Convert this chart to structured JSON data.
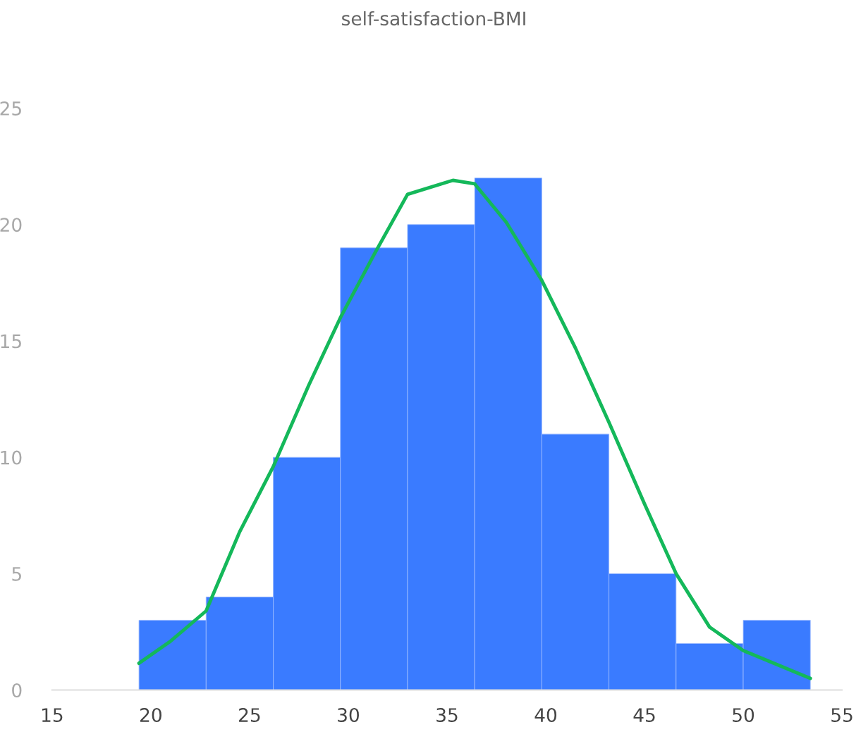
{
  "chart_data": {
    "type": "histogram",
    "title": "self-satisfaction-BMI",
    "bins": [
      19.4,
      22.8,
      26.2,
      29.6,
      33.0,
      36.4,
      39.8,
      43.2,
      46.6,
      50.0,
      53.4
    ],
    "values": [
      3,
      4,
      10,
      19,
      20,
      22,
      11,
      5,
      2,
      3
    ],
    "color": "#3a7bff",
    "series": [
      {
        "type": "line",
        "color": "#14b85a",
        "x": [
          19.4,
          21,
          22.8,
          24.5,
          26.2,
          28,
          29.6,
          31.3,
          33.0,
          35.3,
          36.4,
          38,
          39.8,
          41.5,
          43.2,
          45,
          46.6,
          48.3,
          50.0,
          53.4
        ],
        "values": [
          1.15,
          2.1,
          3.4,
          6.8,
          9.6,
          13.1,
          16.0,
          18.7,
          21.3,
          21.9,
          21.75,
          20.1,
          17.6,
          14.7,
          11.5,
          8.0,
          5.0,
          2.7,
          1.7,
          0.5
        ]
      }
    ],
    "xlim": [
      15,
      55
    ],
    "xticks": [
      15,
      20,
      25,
      30,
      35,
      40,
      45,
      50,
      55
    ],
    "ylim": [
      0,
      25
    ],
    "yticks": [
      0,
      5,
      10,
      15,
      20,
      25
    ],
    "grid": false,
    "marker": "none",
    "line_style": "solid"
  }
}
